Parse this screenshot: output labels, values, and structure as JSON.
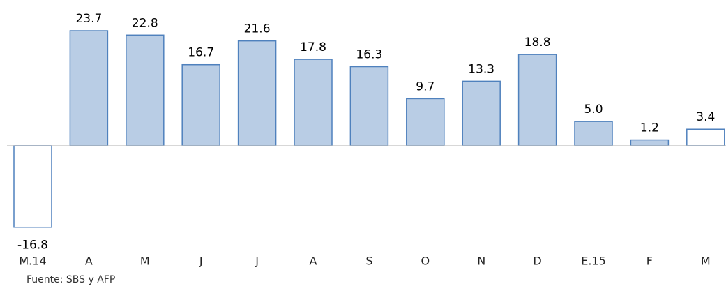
{
  "chart_data": {
    "type": "bar",
    "categories": [
      "M.14",
      "A",
      "M",
      "J",
      "J",
      "A",
      "S",
      "O",
      "N",
      "D",
      "E.15",
      "F",
      "M"
    ],
    "values": [
      -16.8,
      23.7,
      22.8,
      16.7,
      21.6,
      17.8,
      16.3,
      9.7,
      13.3,
      18.8,
      5.0,
      1.2,
      3.4
    ],
    "value_labels": [
      "-16.8",
      "23.7",
      "22.8",
      "16.7",
      "21.6",
      "17.8",
      "16.3",
      "9.7",
      "13.3",
      "18.8",
      "5.0",
      "1.2",
      "3.4"
    ],
    "colors": [
      "#ffffff",
      "#b9cde5",
      "#b9cde5",
      "#b9cde5",
      "#b9cde5",
      "#b9cde5",
      "#b9cde5",
      "#b9cde5",
      "#b9cde5",
      "#b9cde5",
      "#b9cde5",
      "#b9cde5",
      "#ffffff"
    ],
    "edge_color": "#4f81bd",
    "ylim": [
      -20,
      25
    ],
    "source": "Fuente: SBS y AFP"
  }
}
